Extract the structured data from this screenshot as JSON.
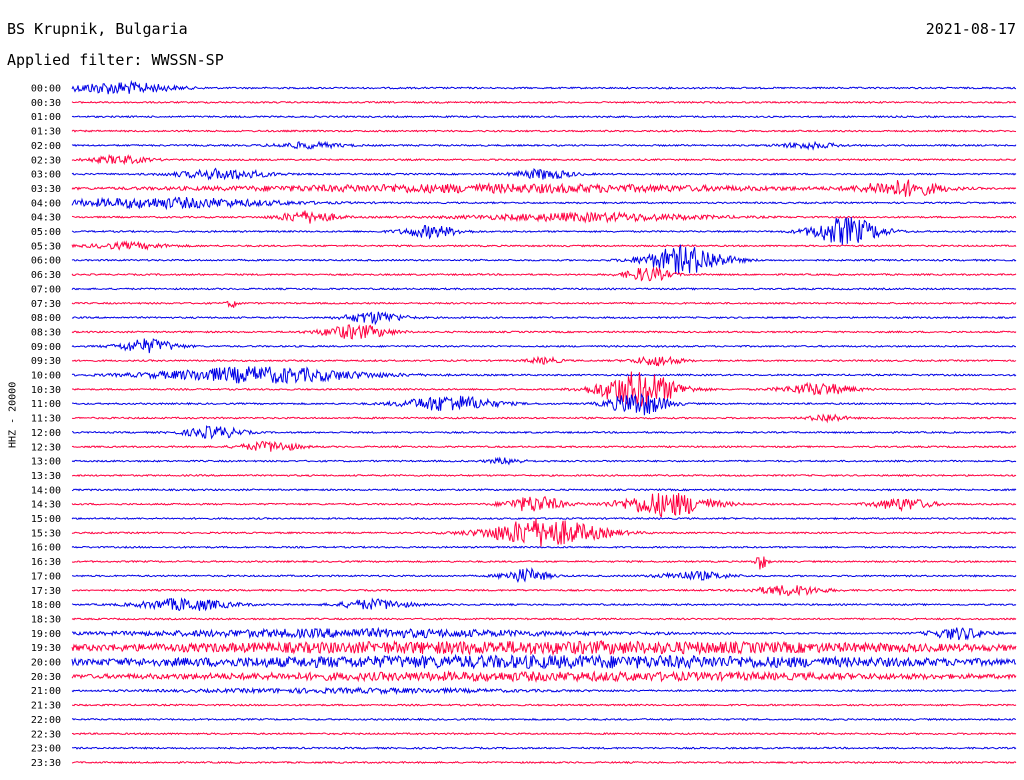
{
  "header": {
    "station": "BS Krupnik, Bulgaria",
    "date": "2021-08-17",
    "filter": "Applied filter: WWSSN-SP"
  },
  "chart_data": {
    "type": "line",
    "title": "BS Krupnik, Bulgaria",
    "ylabel": "HHZ - 20000",
    "colors": [
      "#0000e6",
      "#ff0040"
    ],
    "rows": [
      {
        "time": "00:00",
        "events": [
          {
            "pos": 0.05,
            "width": 0.09,
            "amp": 6
          }
        ]
      },
      {
        "time": "00:30",
        "events": []
      },
      {
        "time": "01:00",
        "events": []
      },
      {
        "time": "01:30",
        "events": []
      },
      {
        "time": "02:00",
        "events": [
          {
            "pos": 0.25,
            "width": 0.06,
            "amp": 3
          },
          {
            "pos": 0.78,
            "width": 0.05,
            "amp": 3
          }
        ]
      },
      {
        "time": "02:30",
        "events": [
          {
            "pos": 0.05,
            "width": 0.05,
            "amp": 4
          }
        ]
      },
      {
        "time": "03:00",
        "events": [
          {
            "pos": 0.16,
            "width": 0.08,
            "amp": 5
          },
          {
            "pos": 0.5,
            "width": 0.05,
            "amp": 5
          }
        ]
      },
      {
        "time": "03:30",
        "events": [
          {
            "pos": 0.88,
            "width": 0.07,
            "amp": 8
          },
          {
            "pos": 0.45,
            "width": 0.5,
            "amp": 4
          }
        ]
      },
      {
        "time": "04:00",
        "events": [
          {
            "pos": 0.1,
            "width": 0.2,
            "amp": 5
          }
        ]
      },
      {
        "time": "04:30",
        "events": [
          {
            "pos": 0.25,
            "width": 0.05,
            "amp": 6
          },
          {
            "pos": 0.55,
            "width": 0.2,
            "amp": 4
          }
        ]
      },
      {
        "time": "05:00",
        "events": [
          {
            "pos": 0.82,
            "width": 0.06,
            "amp": 14
          },
          {
            "pos": 0.38,
            "width": 0.05,
            "amp": 6
          }
        ]
      },
      {
        "time": "05:30",
        "events": [
          {
            "pos": 0.06,
            "width": 0.07,
            "amp": 3
          }
        ]
      },
      {
        "time": "06:00",
        "events": [
          {
            "pos": 0.65,
            "width": 0.07,
            "amp": 14
          }
        ]
      },
      {
        "time": "06:30",
        "events": [
          {
            "pos": 0.61,
            "width": 0.04,
            "amp": 7
          }
        ]
      },
      {
        "time": "07:00",
        "events": []
      },
      {
        "time": "07:30",
        "events": [
          {
            "pos": 0.17,
            "width": 0.01,
            "amp": 4
          }
        ]
      },
      {
        "time": "08:00",
        "events": [
          {
            "pos": 0.32,
            "width": 0.05,
            "amp": 6
          }
        ]
      },
      {
        "time": "08:30",
        "events": [
          {
            "pos": 0.3,
            "width": 0.06,
            "amp": 7
          }
        ]
      },
      {
        "time": "09:00",
        "events": [
          {
            "pos": 0.08,
            "width": 0.05,
            "amp": 7
          }
        ]
      },
      {
        "time": "09:30",
        "events": [
          {
            "pos": 0.62,
            "width": 0.04,
            "amp": 5
          },
          {
            "pos": 0.5,
            "width": 0.03,
            "amp": 3
          }
        ]
      },
      {
        "time": "10:00",
        "events": [
          {
            "pos": 0.2,
            "width": 0.18,
            "amp": 8
          }
        ]
      },
      {
        "time": "10:30",
        "events": [
          {
            "pos": 0.6,
            "width": 0.07,
            "amp": 18
          },
          {
            "pos": 0.79,
            "width": 0.06,
            "amp": 6
          }
        ]
      },
      {
        "time": "11:00",
        "events": [
          {
            "pos": 0.4,
            "width": 0.08,
            "amp": 8
          },
          {
            "pos": 0.6,
            "width": 0.05,
            "amp": 12
          }
        ]
      },
      {
        "time": "11:30",
        "events": [
          {
            "pos": 0.8,
            "width": 0.03,
            "amp": 4
          }
        ]
      },
      {
        "time": "12:00",
        "events": [
          {
            "pos": 0.15,
            "width": 0.05,
            "amp": 6
          }
        ]
      },
      {
        "time": "12:30",
        "events": [
          {
            "pos": 0.21,
            "width": 0.05,
            "amp": 5
          }
        ]
      },
      {
        "time": "13:00",
        "events": [
          {
            "pos": 0.46,
            "width": 0.03,
            "amp": 3
          }
        ]
      },
      {
        "time": "13:30",
        "events": []
      },
      {
        "time": "14:00",
        "events": []
      },
      {
        "time": "14:30",
        "events": [
          {
            "pos": 0.49,
            "width": 0.05,
            "amp": 8
          },
          {
            "pos": 0.63,
            "width": 0.08,
            "amp": 12
          },
          {
            "pos": 0.88,
            "width": 0.05,
            "amp": 6
          }
        ]
      },
      {
        "time": "15:00",
        "events": []
      },
      {
        "time": "15:30",
        "events": [
          {
            "pos": 0.5,
            "width": 0.1,
            "amp": 14
          }
        ]
      },
      {
        "time": "16:00",
        "events": []
      },
      {
        "time": "16:30",
        "events": [
          {
            "pos": 0.73,
            "width": 0.01,
            "amp": 8
          }
        ]
      },
      {
        "time": "17:00",
        "events": [
          {
            "pos": 0.48,
            "width": 0.04,
            "amp": 7
          },
          {
            "pos": 0.66,
            "width": 0.06,
            "amp": 4
          }
        ]
      },
      {
        "time": "17:30",
        "events": [
          {
            "pos": 0.76,
            "width": 0.06,
            "amp": 5
          }
        ]
      },
      {
        "time": "18:00",
        "events": [
          {
            "pos": 0.12,
            "width": 0.08,
            "amp": 6
          },
          {
            "pos": 0.32,
            "width": 0.06,
            "amp": 5
          }
        ]
      },
      {
        "time": "18:30",
        "events": []
      },
      {
        "time": "19:00",
        "events": [
          {
            "pos": 0.3,
            "width": 0.4,
            "amp": 4
          },
          {
            "pos": 0.94,
            "width": 0.05,
            "amp": 6
          }
        ]
      },
      {
        "time": "19:30",
        "events": [
          {
            "pos": 0.5,
            "width": 0.9,
            "amp": 6
          }
        ]
      },
      {
        "time": "20:00",
        "events": [
          {
            "pos": 0.5,
            "width": 0.9,
            "amp": 6
          }
        ]
      },
      {
        "time": "20:30",
        "events": [
          {
            "pos": 0.5,
            "width": 0.8,
            "amp": 4
          }
        ]
      },
      {
        "time": "21:00",
        "events": [
          {
            "pos": 0.3,
            "width": 0.3,
            "amp": 2
          }
        ]
      },
      {
        "time": "21:30",
        "events": []
      },
      {
        "time": "22:00",
        "events": []
      },
      {
        "time": "22:30",
        "events": []
      },
      {
        "time": "23:00",
        "events": []
      },
      {
        "time": "23:30",
        "events": []
      }
    ]
  }
}
